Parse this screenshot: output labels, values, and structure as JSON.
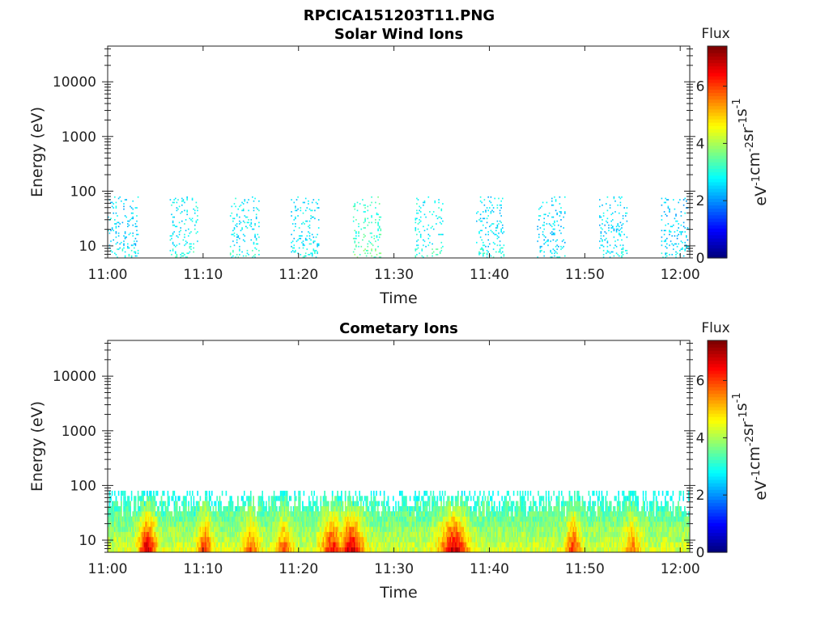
{
  "figure": {
    "title": "RPCICA151203T11.PNG"
  },
  "colorbar_units": {
    "base": "eV",
    "parts": [
      {
        "t": "eV",
        "sup": "-1"
      },
      {
        "t": "cm",
        "sup": "-2"
      },
      {
        "t": "sr",
        "sup": "-1"
      },
      {
        "t": "s",
        "sup": "-1"
      }
    ]
  },
  "chart_data": [
    {
      "type": "heatmap",
      "title": "Solar Wind Ions",
      "xlabel": "Time",
      "ylabel": "Energy (eV)",
      "x_ticks": [
        "11:00",
        "11:10",
        "11:20",
        "11:30",
        "11:40",
        "11:50",
        "12:00"
      ],
      "x_range_minutes": [
        0,
        61
      ],
      "y_scale": "log",
      "y_ticks": [
        10,
        100,
        1000,
        10000
      ],
      "y_tick_labels": [
        "10",
        "100",
        "1000",
        "10000"
      ],
      "y_range": [
        6,
        45000
      ],
      "colorbar": {
        "label": "Flux",
        "ticks": [
          0,
          2,
          4,
          6
        ],
        "range": [
          0,
          7.4
        ],
        "colormap": "jet"
      },
      "bursts": [
        {
          "start_min": 0.0,
          "end_min": 3.3,
          "emin": 6,
          "emax": 80,
          "flux": 2.5
        },
        {
          "start_min": 6.5,
          "end_min": 9.5,
          "emin": 6,
          "emax": 80,
          "flux": 2.7
        },
        {
          "start_min": 12.8,
          "end_min": 16.0,
          "emin": 6,
          "emax": 80,
          "flux": 2.7
        },
        {
          "start_min": 19.2,
          "end_min": 22.2,
          "emin": 6,
          "emax": 80,
          "flux": 2.6
        },
        {
          "start_min": 25.7,
          "end_min": 28.7,
          "emin": 6,
          "emax": 80,
          "flux": 3.2
        },
        {
          "start_min": 32.2,
          "end_min": 35.2,
          "emin": 6,
          "emax": 80,
          "flux": 2.8
        },
        {
          "start_min": 38.6,
          "end_min": 41.6,
          "emin": 6,
          "emax": 80,
          "flux": 2.6
        },
        {
          "start_min": 45.0,
          "end_min": 48.0,
          "emin": 6,
          "emax": 80,
          "flux": 2.5
        },
        {
          "start_min": 51.5,
          "end_min": 54.5,
          "emin": 6,
          "emax": 80,
          "flux": 2.5
        },
        {
          "start_min": 58.0,
          "end_min": 61.0,
          "emin": 6,
          "emax": 80,
          "flux": 2.4
        }
      ]
    },
    {
      "type": "heatmap",
      "title": "Cometary Ions",
      "xlabel": "Time",
      "ylabel": "Energy (eV)",
      "x_ticks": [
        "11:00",
        "11:10",
        "11:20",
        "11:30",
        "11:40",
        "11:50",
        "12:00"
      ],
      "x_range_minutes": [
        0,
        61
      ],
      "y_scale": "log",
      "y_ticks": [
        10,
        100,
        1000,
        10000
      ],
      "y_tick_labels": [
        "10",
        "100",
        "1000",
        "10000"
      ],
      "y_range": [
        6,
        45000
      ],
      "colorbar": {
        "label": "Flux",
        "ticks": [
          0,
          2,
          4,
          6
        ],
        "range": [
          0,
          7.4
        ],
        "colormap": "jet"
      },
      "band": {
        "emin": 6,
        "emax": 80,
        "base_flux": 4.3
      },
      "hotspots": [
        {
          "time_min": 4.2,
          "width_min": 1.2,
          "flux": 7.0
        },
        {
          "time_min": 10.2,
          "width_min": 1.0,
          "flux": 6.3
        },
        {
          "time_min": 15.0,
          "width_min": 1.2,
          "flux": 5.8
        },
        {
          "time_min": 18.5,
          "width_min": 1.2,
          "flux": 5.8
        },
        {
          "time_min": 23.5,
          "width_min": 1.5,
          "flux": 6.5
        },
        {
          "time_min": 25.5,
          "width_min": 1.8,
          "flux": 6.9
        },
        {
          "time_min": 36.3,
          "width_min": 2.0,
          "flux": 6.9
        },
        {
          "time_min": 48.8,
          "width_min": 1.0,
          "flux": 6.2
        },
        {
          "time_min": 55.0,
          "width_min": 1.2,
          "flux": 5.6
        }
      ]
    }
  ]
}
